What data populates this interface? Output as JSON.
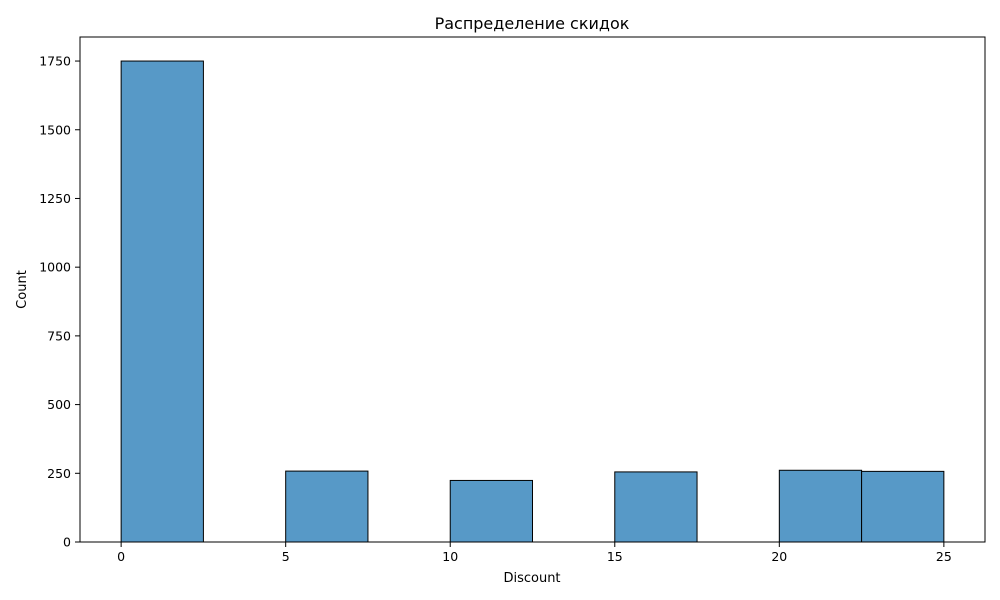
{
  "chart_data": {
    "type": "bar",
    "title": "Распределение скидок",
    "xlabel": "Discount",
    "ylabel": "Count",
    "bins": [
      {
        "x0": 0,
        "x1": 2.5,
        "value": 1750
      },
      {
        "x0": 2.5,
        "x1": 5,
        "value": 0
      },
      {
        "x0": 5,
        "x1": 7.5,
        "value": 258
      },
      {
        "x0": 7.5,
        "x1": 10,
        "value": 0
      },
      {
        "x0": 10,
        "x1": 12.5,
        "value": 224
      },
      {
        "x0": 12.5,
        "x1": 15,
        "value": 0
      },
      {
        "x0": 15,
        "x1": 17.5,
        "value": 255
      },
      {
        "x0": 17.5,
        "x1": 20,
        "value": 0
      },
      {
        "x0": 20,
        "x1": 22.5,
        "value": 261
      },
      {
        "x0": 22.5,
        "x1": 25,
        "value": 257
      }
    ],
    "xlim": [
      -1.25,
      26.25
    ],
    "ylim": [
      0,
      1837.5
    ],
    "xticks": [
      0,
      5,
      10,
      15,
      20,
      25
    ],
    "yticks": [
      0,
      250,
      500,
      750,
      1000,
      1250,
      1500,
      1750
    ],
    "grid": false,
    "colors": {
      "bar_fill": "#5799c7",
      "bar_edge": "#000000"
    }
  }
}
